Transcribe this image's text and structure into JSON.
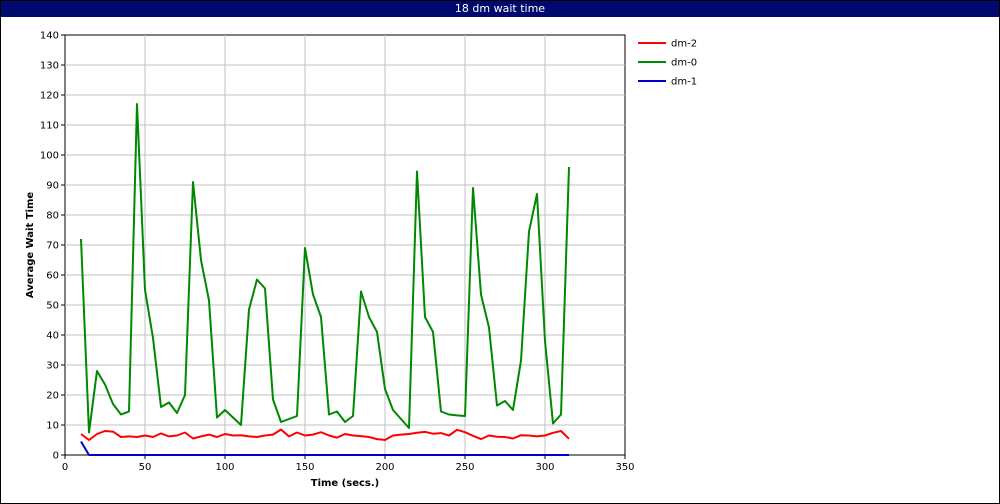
{
  "window": {
    "title": "18 dm wait time"
  },
  "chart_data": {
    "type": "line",
    "title": "18 dm wait time",
    "xlabel": "Time (secs.)",
    "ylabel": "Average Wait Time",
    "xlim": [
      0,
      350
    ],
    "ylim": [
      0,
      140
    ],
    "xticks": [
      0,
      50,
      100,
      150,
      200,
      250,
      300,
      350
    ],
    "yticks": [
      0,
      10,
      20,
      30,
      40,
      50,
      60,
      70,
      80,
      90,
      100,
      110,
      120,
      130,
      140
    ],
    "grid": true,
    "legend_position": "right",
    "series": [
      {
        "name": "dm-2",
        "color": "#ff0000",
        "points": [
          [
            10,
            7
          ],
          [
            15,
            5
          ],
          [
            20,
            7
          ],
          [
            25,
            8
          ],
          [
            30,
            7.8
          ],
          [
            35,
            6
          ],
          [
            40,
            6.2
          ],
          [
            45,
            6
          ],
          [
            50,
            6.5
          ],
          [
            55,
            6
          ],
          [
            60,
            7.2
          ],
          [
            65,
            6.2
          ],
          [
            70,
            6.5
          ],
          [
            75,
            7.5
          ],
          [
            80,
            5.5
          ],
          [
            85,
            6.2
          ],
          [
            90,
            6.8
          ],
          [
            95,
            6
          ],
          [
            100,
            7
          ],
          [
            105,
            6.5
          ],
          [
            110,
            6.6
          ],
          [
            115,
            6.2
          ],
          [
            120,
            6
          ],
          [
            125,
            6.5
          ],
          [
            130,
            6.8
          ],
          [
            135,
            8.5
          ],
          [
            140,
            6.2
          ],
          [
            145,
            7.5
          ],
          [
            150,
            6.5
          ],
          [
            155,
            6.8
          ],
          [
            160,
            7.6
          ],
          [
            165,
            6.5
          ],
          [
            170,
            5.8
          ],
          [
            175,
            7
          ],
          [
            180,
            6.5
          ],
          [
            185,
            6.3
          ],
          [
            190,
            6
          ],
          [
            195,
            5.3
          ],
          [
            200,
            5
          ],
          [
            205,
            6.5
          ],
          [
            210,
            6.8
          ],
          [
            215,
            7
          ],
          [
            220,
            7.4
          ],
          [
            225,
            7.7
          ],
          [
            230,
            7.1
          ],
          [
            235,
            7.3
          ],
          [
            240,
            6.5
          ],
          [
            245,
            8.4
          ],
          [
            250,
            7.6
          ],
          [
            255,
            6.4
          ],
          [
            260,
            5.3
          ],
          [
            265,
            6.5
          ],
          [
            270,
            6.1
          ],
          [
            275,
            6
          ],
          [
            280,
            5.5
          ],
          [
            285,
            6.6
          ],
          [
            290,
            6.5
          ],
          [
            295,
            6.2
          ],
          [
            300,
            6.5
          ],
          [
            305,
            7.4
          ],
          [
            310,
            8
          ],
          [
            315,
            5.4
          ]
        ]
      },
      {
        "name": "dm-0",
        "color": "#008800",
        "points": [
          [
            10,
            72
          ],
          [
            15,
            7.5
          ],
          [
            20,
            28
          ],
          [
            25,
            23.5
          ],
          [
            30,
            17
          ],
          [
            35,
            13.5
          ],
          [
            40,
            14.5
          ],
          [
            45,
            117
          ],
          [
            50,
            55
          ],
          [
            55,
            39
          ],
          [
            60,
            16
          ],
          [
            65,
            17.5
          ],
          [
            70,
            14
          ],
          [
            75,
            20
          ],
          [
            80,
            91
          ],
          [
            85,
            65
          ],
          [
            90,
            51.5
          ],
          [
            95,
            12.5
          ],
          [
            100,
            15
          ],
          [
            105,
            12.5
          ],
          [
            110,
            10
          ],
          [
            115,
            48.5
          ],
          [
            120,
            58.5
          ],
          [
            125,
            55.5
          ],
          [
            130,
            18.5
          ],
          [
            135,
            11
          ],
          [
            140,
            12
          ],
          [
            145,
            13
          ],
          [
            150,
            69
          ],
          [
            155,
            53.5
          ],
          [
            160,
            46
          ],
          [
            165,
            13.5
          ],
          [
            170,
            14.5
          ],
          [
            175,
            11
          ],
          [
            180,
            13
          ],
          [
            185,
            54.5
          ],
          [
            190,
            46
          ],
          [
            195,
            41
          ],
          [
            200,
            22
          ],
          [
            205,
            15
          ],
          [
            210,
            12
          ],
          [
            215,
            9
          ],
          [
            220,
            94.5
          ],
          [
            225,
            46
          ],
          [
            230,
            41
          ],
          [
            235,
            14.5
          ],
          [
            240,
            13.5
          ],
          [
            245,
            13.2
          ],
          [
            250,
            13
          ],
          [
            255,
            89
          ],
          [
            260,
            53.5
          ],
          [
            265,
            42.5
          ],
          [
            270,
            16.5
          ],
          [
            275,
            18
          ],
          [
            280,
            15
          ],
          [
            285,
            31.5
          ],
          [
            290,
            74.5
          ],
          [
            295,
            87
          ],
          [
            300,
            38
          ],
          [
            305,
            10.5
          ],
          [
            310,
            13.5
          ],
          [
            315,
            96
          ]
        ]
      },
      {
        "name": "dm-1",
        "color": "#0000cc",
        "points": [
          [
            10,
            4.5
          ],
          [
            15,
            0
          ],
          [
            20,
            0
          ],
          [
            315,
            0
          ]
        ]
      }
    ]
  }
}
